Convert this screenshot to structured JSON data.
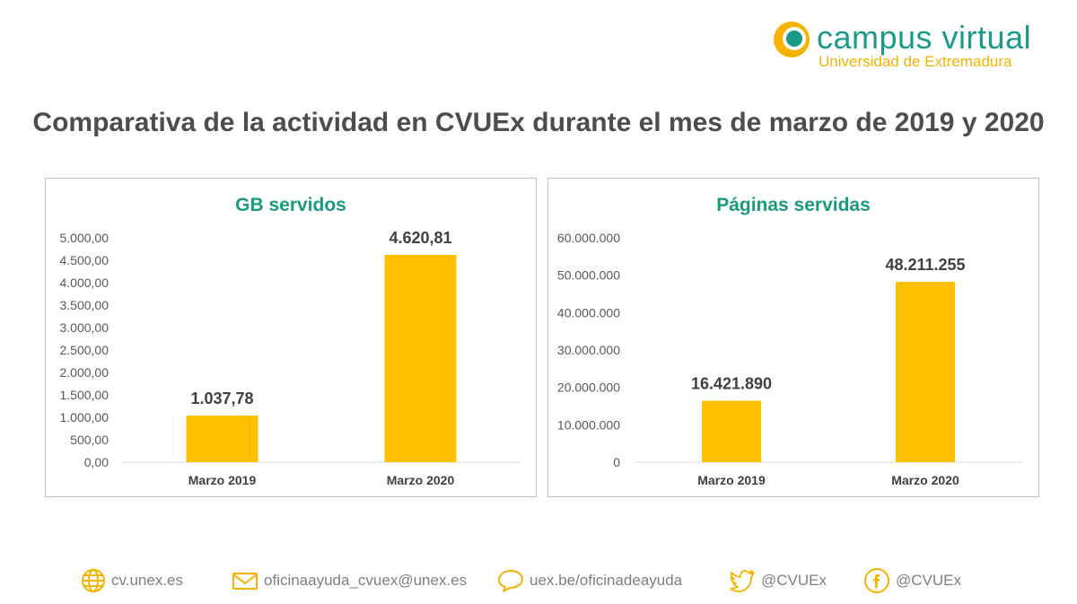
{
  "brand": {
    "title": "campus virtual",
    "subtitle": "Universidad de Extremadura",
    "colors": {
      "teal": "#1a9b8a",
      "gold": "#f5b300"
    }
  },
  "page": {
    "title": "Comparativa de la actividad en CVUEx durante el mes de marzo de 2019 y 2020"
  },
  "chart_data": [
    {
      "type": "bar",
      "title": "GB servidos",
      "categories": [
        "Marzo 2019",
        "Marzo 2020"
      ],
      "values": [
        1037.78,
        4620.81
      ],
      "data_labels": [
        "1.037,78",
        "4.620,81"
      ],
      "ylim": [
        0,
        5000
      ],
      "yticks": [
        0,
        500,
        1000,
        1500,
        2000,
        2500,
        3000,
        3500,
        4000,
        4500,
        5000
      ],
      "ytick_labels": [
        "0,00",
        "500,00",
        "1.000,00",
        "1.500,00",
        "2.000,00",
        "2.500,00",
        "3.000,00",
        "3.500,00",
        "4.000,00",
        "4.500,00",
        "5.000,00"
      ],
      "grid": false,
      "bar_color": "#ffc000",
      "title_color": "#1a9b7c"
    },
    {
      "type": "bar",
      "title": "Páginas servidas",
      "categories": [
        "Marzo 2019",
        "Marzo 2020"
      ],
      "values": [
        16421890,
        48211255
      ],
      "data_labels": [
        "16.421.890",
        "48.211.255"
      ],
      "ylim": [
        0,
        60000000
      ],
      "yticks": [
        0,
        10000000,
        20000000,
        30000000,
        40000000,
        50000000,
        60000000
      ],
      "ytick_labels": [
        "0",
        "10.000.000",
        "20.000.000",
        "30.000.000",
        "40.000.000",
        "50.000.000",
        "60.000.000"
      ],
      "grid": false,
      "bar_color": "#ffc000",
      "title_color": "#1a9b7c"
    }
  ],
  "footer": {
    "items": [
      {
        "icon": "globe-icon",
        "text": "cv.unex.es"
      },
      {
        "icon": "envelope-icon",
        "text": "oficinaayuda_cvuex@unex.es"
      },
      {
        "icon": "speech-bubble-icon",
        "text": "uex.be/oficinadeayuda"
      },
      {
        "icon": "twitter-icon",
        "text": "@CVUEx"
      },
      {
        "icon": "facebook-icon",
        "text": "@CVUEx"
      }
    ],
    "icon_color": "#f5b300"
  }
}
